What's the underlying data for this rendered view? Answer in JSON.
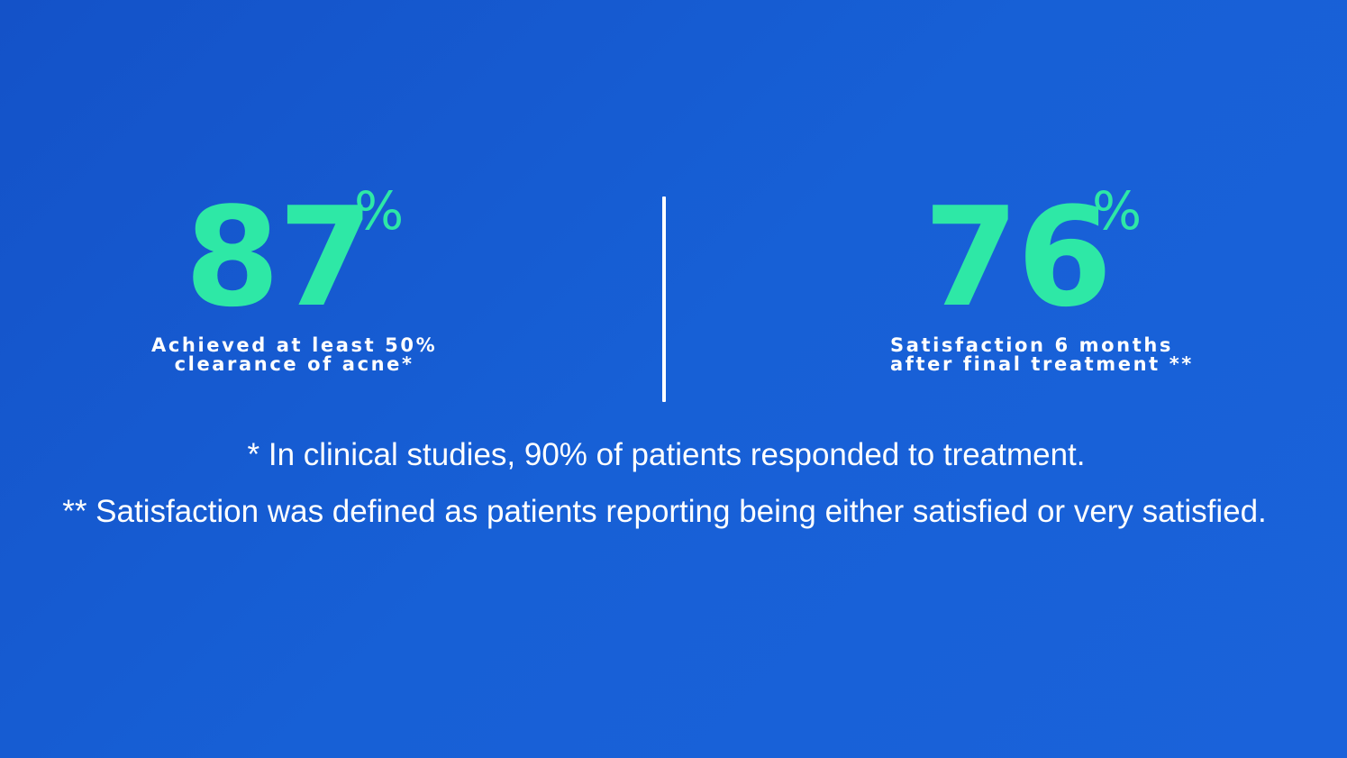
{
  "stats": [
    {
      "value": "87",
      "unit": "%",
      "caption_line1": "Achieved at least 50%",
      "caption_line2": "clearance of acne*"
    },
    {
      "value": "76",
      "unit": "%",
      "caption_line1": "Satisfaction 6 months",
      "caption_line2": "after final treatment **"
    }
  ],
  "footnotes": [
    "* In clinical studies, 90% of patients responded to treatment.",
    "** Satisfaction was defined as patients reporting being either satisfied or very satisfied."
  ],
  "colors": {
    "background": "#1760d6",
    "accent": "#2ee8a6",
    "text": "#ffffff"
  }
}
